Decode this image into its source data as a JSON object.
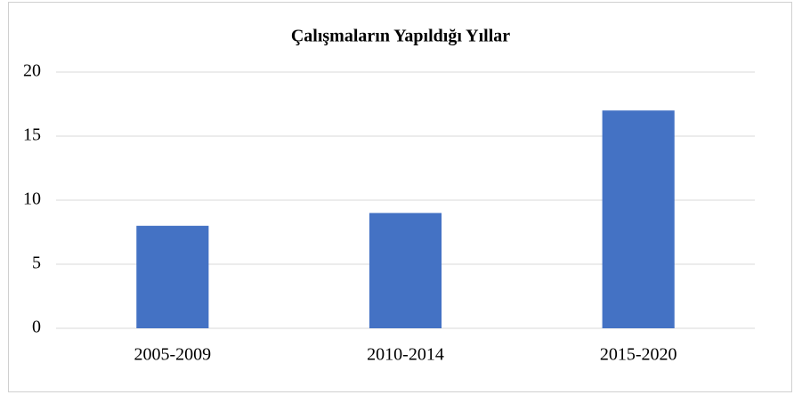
{
  "chart_data": {
    "type": "bar",
    "title": "Çalışmaların Yapıldığı Yıllar",
    "categories": [
      "2005-2009",
      "2010-2014",
      "2015-2020"
    ],
    "values": [
      8,
      9,
      17
    ],
    "color": "#4472c4",
    "ylim": [
      0,
      20
    ],
    "yticks": [
      0,
      5,
      10,
      15,
      20
    ],
    "grid": true
  }
}
